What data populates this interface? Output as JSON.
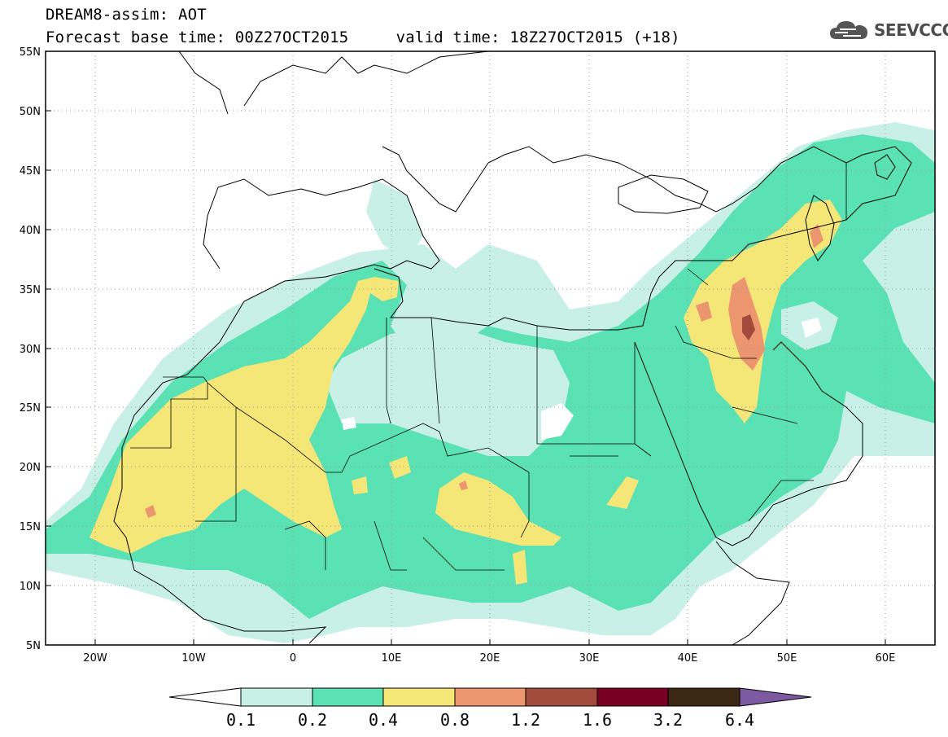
{
  "header": {
    "title_line1": "DREAM8-assim: AOT",
    "base_time": "Forecast base time: 00Z27OCT2015",
    "valid_time": "valid time: 18Z27OCT2015 (+18)"
  },
  "logo": {
    "text": "SEEVCCC",
    "icon": "cloud-logo-icon"
  },
  "map": {
    "lat_labels": [
      "55N",
      "50N",
      "45N",
      "40N",
      "35N",
      "30N",
      "25N",
      "20N",
      "15N",
      "10N",
      "5N"
    ],
    "lon_labels": [
      "20W",
      "10W",
      "0",
      "10E",
      "20E",
      "30E",
      "40E",
      "50E",
      "60E"
    ],
    "grid_style": "dotted"
  },
  "colorbar": {
    "labels": [
      "0.1",
      "0.2",
      "0.4",
      "0.8",
      "1.2",
      "1.6",
      "3.2",
      "6.4"
    ],
    "colors": [
      "#ffffff",
      "#c8f0e6",
      "#5ae1b4",
      "#f5e678",
      "#eb966e",
      "#a04b3c",
      "#780023",
      "#3c2814",
      "#7d5aa0"
    ]
  },
  "colors": {
    "low": "#c8f0e6",
    "mid": "#5ae1b4",
    "high": "#f5e678",
    "vhigh": "#eb966e",
    "peak": "#a04b3c"
  }
}
